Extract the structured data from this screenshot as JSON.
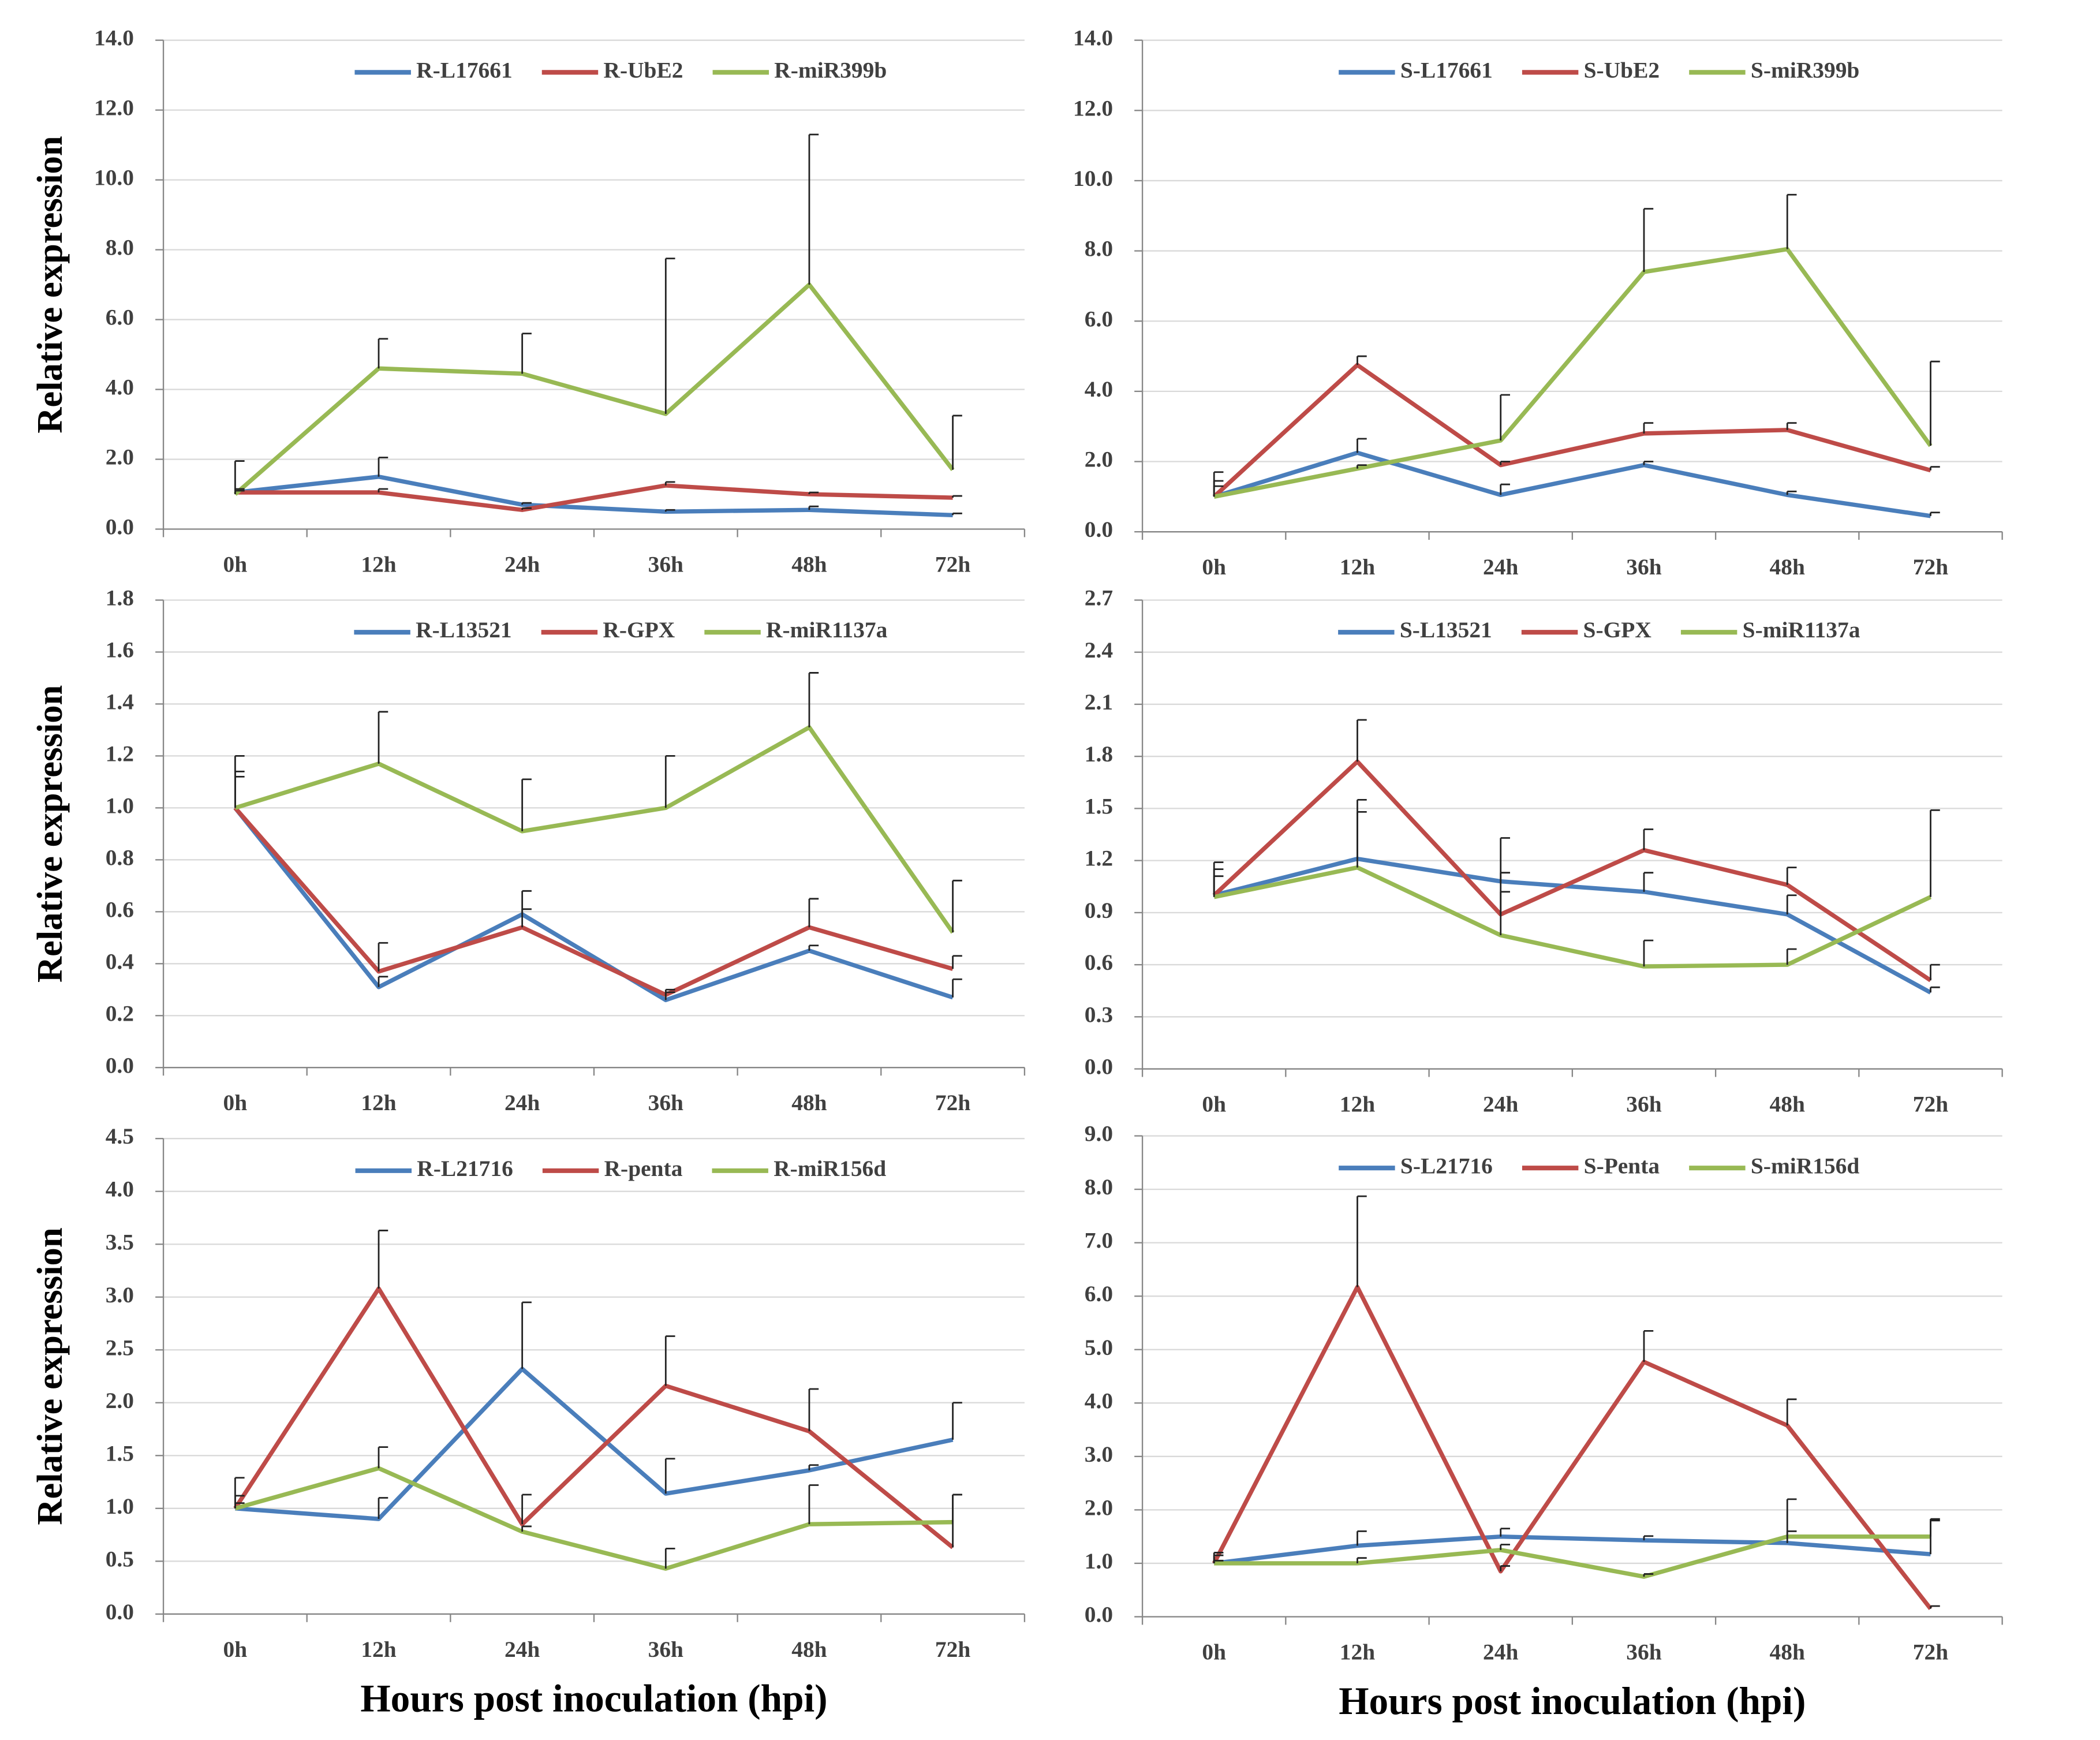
{
  "chart_data": [
    {
      "type": "line",
      "ylabel": "Relative expression",
      "categories": [
        "0h",
        "12h",
        "24h",
        "36h",
        "48h",
        "72h"
      ],
      "ylim": [
        0,
        14
      ],
      "yticks": [
        {
          "value": 0,
          "label": "0.0"
        },
        {
          "value": 2,
          "label": "2.0"
        },
        {
          "value": 4,
          "label": "4.0"
        },
        {
          "value": 6,
          "label": "6.0"
        },
        {
          "value": 8,
          "label": "8.0"
        },
        {
          "value": 10,
          "label": "10.0"
        },
        {
          "value": 12,
          "label": "12.0"
        },
        {
          "value": 14,
          "label": "14.0"
        }
      ],
      "grid": true,
      "series": [
        {
          "name": "R-L17661",
          "color": "#4a7ebb",
          "values": [
            1.05,
            1.5,
            0.7,
            0.5,
            0.55,
            0.4
          ],
          "errors": [
            0.1,
            0.55,
            0.05,
            0.05,
            0.1,
            0.05
          ]
        },
        {
          "name": "R-UbE2",
          "color": "#be4b48",
          "values": [
            1.05,
            1.05,
            0.55,
            1.25,
            1.0,
            0.9
          ],
          "errors": [
            0.05,
            0.1,
            0.05,
            0.1,
            0.05,
            0.05
          ]
        },
        {
          "name": "R-miR399b",
          "color": "#98b954",
          "values": [
            1.0,
            4.6,
            4.45,
            3.3,
            7.0,
            1.7
          ],
          "errors": [
            0.95,
            0.85,
            1.15,
            4.45,
            4.3,
            1.55
          ]
        }
      ]
    },
    {
      "type": "line",
      "categories": [
        "0h",
        "12h",
        "24h",
        "36h",
        "48h",
        "72h"
      ],
      "ylim": [
        0,
        14
      ],
      "yticks": [
        {
          "value": 0,
          "label": "0.0"
        },
        {
          "value": 2,
          "label": "2.0"
        },
        {
          "value": 4,
          "label": "4.0"
        },
        {
          "value": 6,
          "label": "6.0"
        },
        {
          "value": 8,
          "label": "8.0"
        },
        {
          "value": 10,
          "label": "10.0"
        },
        {
          "value": 12,
          "label": "12.0"
        },
        {
          "value": 14,
          "label": "14.0"
        }
      ],
      "grid": true,
      "series": [
        {
          "name": "S-L17661",
          "color": "#4a7ebb",
          "values": [
            1.0,
            2.25,
            1.05,
            1.9,
            1.05,
            0.45
          ],
          "errors": [
            0.7,
            0.4,
            0.3,
            0.1,
            0.1,
            0.1
          ]
        },
        {
          "name": "S-UbE2",
          "color": "#be4b48",
          "values": [
            1.0,
            4.75,
            1.9,
            2.8,
            2.9,
            1.75
          ],
          "errors": [
            0.3,
            0.25,
            0.1,
            0.3,
            0.2,
            0.1
          ]
        },
        {
          "name": "S-miR399b",
          "color": "#98b954",
          "values": [
            1.0,
            1.8,
            2.6,
            7.4,
            8.05,
            2.45
          ],
          "errors": [
            0.45,
            0.1,
            1.3,
            1.8,
            1.55,
            2.4
          ]
        }
      ]
    },
    {
      "type": "line",
      "ylabel": "Relative expression",
      "categories": [
        "0h",
        "12h",
        "24h",
        "36h",
        "48h",
        "72h"
      ],
      "ylim": [
        0,
        1.8
      ],
      "yticks": [
        {
          "value": 0,
          "label": "0.0"
        },
        0.2,
        0.4,
        0.6,
        0.8,
        {
          "value": 1,
          "label": "1.0"
        },
        1.2,
        1.4,
        1.6,
        1.8
      ],
      "grid": true,
      "series": [
        {
          "name": "R-L13521",
          "color": "#4a7ebb",
          "values": [
            1.0,
            0.31,
            0.59,
            0.26,
            0.45,
            0.27
          ],
          "errors": [
            0.14,
            0.04,
            0.09,
            0.03,
            0.02,
            0.07
          ]
        },
        {
          "name": "R-GPX",
          "color": "#be4b48",
          "values": [
            1.0,
            0.37,
            0.54,
            0.28,
            0.54,
            0.38
          ],
          "errors": [
            0.12,
            0.11,
            0.07,
            0.02,
            0.11,
            0.05
          ]
        },
        {
          "name": "R-miR1137a",
          "color": "#98b954",
          "values": [
            1.0,
            1.17,
            0.91,
            1.0,
            1.31,
            0.52
          ],
          "errors": [
            0.2,
            0.2,
            0.2,
            0.2,
            0.21,
            0.2
          ]
        }
      ]
    },
    {
      "type": "line",
      "categories": [
        "0h",
        "12h",
        "24h",
        "36h",
        "48h",
        "72h"
      ],
      "ylim": [
        0,
        2.7
      ],
      "yticks": [
        {
          "value": 0,
          "label": "0.0"
        },
        0.3,
        0.6,
        0.9,
        1.2,
        1.5,
        1.8,
        2.1,
        2.4,
        2.7
      ],
      "grid": true,
      "series": [
        {
          "name": "S-L13521",
          "color": "#4a7ebb",
          "values": [
            1.0,
            1.21,
            1.08,
            1.02,
            0.89,
            0.44
          ],
          "errors": [
            0.15,
            0.27,
            0.05,
            0.11,
            0.11,
            0.03
          ]
        },
        {
          "name": "S-GPX",
          "color": "#be4b48",
          "values": [
            1.0,
            1.77,
            0.89,
            1.26,
            1.06,
            0.51
          ],
          "errors": [
            0.19,
            0.24,
            0.13,
            0.12,
            0.1,
            0.09
          ]
        },
        {
          "name": "S-miR1137a",
          "color": "#98b954",
          "values": [
            0.99,
            1.16,
            0.77,
            0.59,
            0.6,
            0.99
          ],
          "errors": [
            0.12,
            0.39,
            0.56,
            0.15,
            0.09,
            0.5
          ]
        }
      ]
    },
    {
      "type": "line",
      "ylabel": "Relative expression",
      "xlabel": "Hours post inoculation (hpi)",
      "categories": [
        "0h",
        "12h",
        "24h",
        "36h",
        "48h",
        "72h"
      ],
      "ylim": [
        0,
        4.5
      ],
      "yticks": [
        {
          "value": 0,
          "label": "0.0"
        },
        0.5,
        {
          "value": 1,
          "label": "1.0"
        },
        1.5,
        {
          "value": 2,
          "label": "2.0"
        },
        2.5,
        {
          "value": 3,
          "label": "3.0"
        },
        3.5,
        {
          "value": 4,
          "label": "4.0"
        },
        4.5
      ],
      "grid": true,
      "series": [
        {
          "name": "R-L21716",
          "color": "#4a7ebb",
          "values": [
            1.0,
            0.9,
            2.32,
            1.14,
            1.36,
            1.65
          ],
          "errors": [
            0.29,
            0.2,
            0.63,
            0.33,
            0.05,
            0.35
          ]
        },
        {
          "name": "R-penta",
          "color": "#be4b48",
          "values": [
            1.0,
            3.08,
            0.85,
            2.16,
            1.73,
            0.63
          ],
          "errors": [
            0.12,
            0.55,
            0.28,
            0.47,
            0.4,
            0.5
          ]
        },
        {
          "name": "R-miR156d",
          "color": "#98b954",
          "values": [
            1.0,
            1.38,
            0.78,
            0.43,
            0.85,
            0.87
          ],
          "errors": [
            0.05,
            0.2,
            0.05,
            0.19,
            0.37,
            0.26
          ]
        }
      ]
    },
    {
      "type": "line",
      "xlabel": "Hours post inoculation (hpi)",
      "categories": [
        "0h",
        "12h",
        "24h",
        "36h",
        "48h",
        "72h"
      ],
      "ylim": [
        0,
        9
      ],
      "yticks": [
        {
          "value": 0,
          "label": "0.0"
        },
        {
          "value": 1,
          "label": "1.0"
        },
        {
          "value": 2,
          "label": "2.0"
        },
        {
          "value": 3,
          "label": "3.0"
        },
        {
          "value": 4,
          "label": "4.0"
        },
        {
          "value": 5,
          "label": "5.0"
        },
        {
          "value": 6,
          "label": "6.0"
        },
        {
          "value": 7,
          "label": "7.0"
        },
        {
          "value": 8,
          "label": "8.0"
        },
        {
          "value": 9,
          "label": "9.0"
        }
      ],
      "grid": true,
      "series": [
        {
          "name": "S-L21716",
          "color": "#4a7ebb",
          "values": [
            1.0,
            1.33,
            1.5,
            1.43,
            1.38,
            1.17
          ],
          "errors": [
            0.2,
            0.27,
            0.15,
            0.08,
            0.82,
            0.63
          ]
        },
        {
          "name": "S-Penta",
          "color": "#be4b48",
          "values": [
            1.0,
            6.17,
            0.85,
            4.77,
            3.58,
            0.15
          ],
          "errors": [
            0.15,
            1.7,
            0.1,
            0.58,
            0.49,
            0.05
          ]
        },
        {
          "name": "S-miR156d",
          "color": "#98b954",
          "values": [
            1.0,
            1.0,
            1.25,
            0.75,
            1.5,
            1.5
          ],
          "errors": [
            0.05,
            0.1,
            0.1,
            0.05,
            0.1,
            0.33
          ]
        }
      ]
    }
  ]
}
